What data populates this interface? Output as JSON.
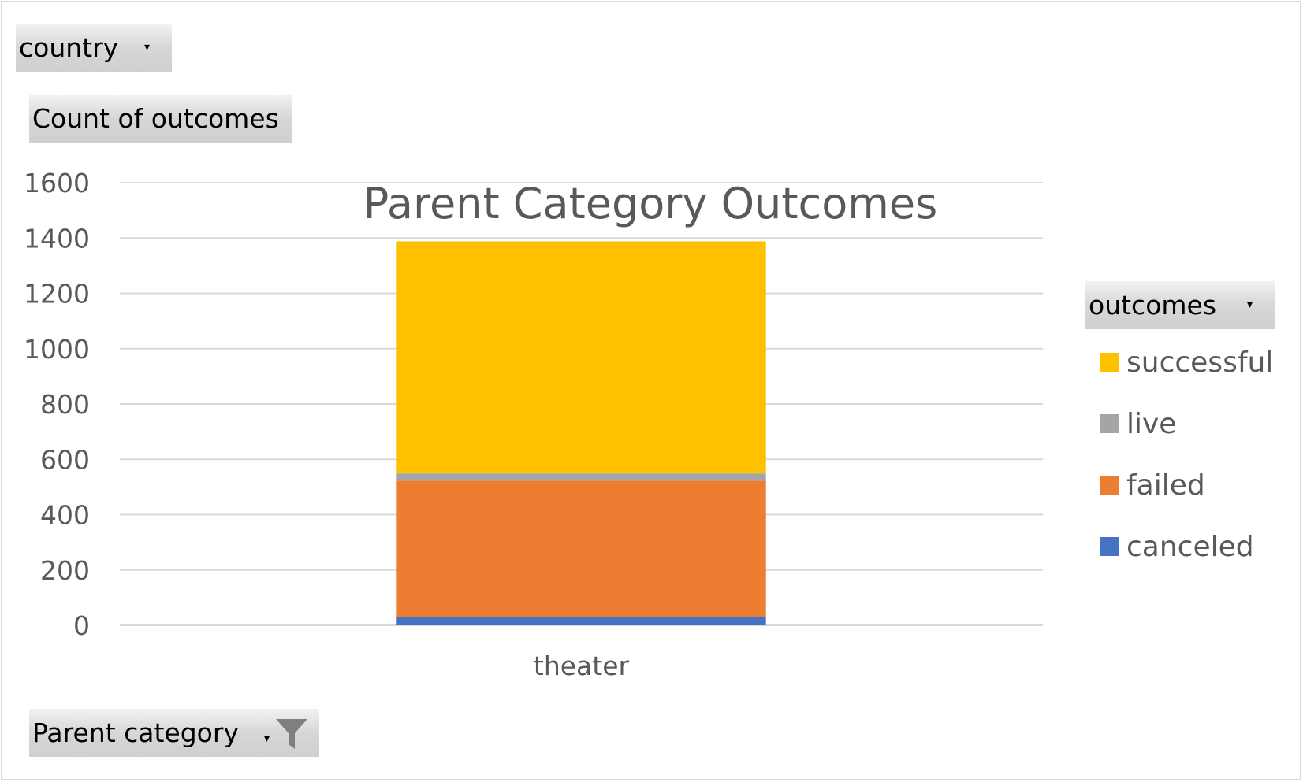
{
  "filters": {
    "country_label": "country",
    "values_label": "Count of outcomes",
    "legend_field_label": "outcomes",
    "axis_field_label": "Parent category"
  },
  "chart_data": {
    "type": "bar",
    "stacked": true,
    "title": "Parent Category Outcomes",
    "categories": [
      "theater"
    ],
    "ylim": [
      0,
      1600
    ],
    "yticks": [
      0,
      200,
      400,
      600,
      800,
      1000,
      1200,
      1400,
      1600
    ],
    "grid": true,
    "legend_position": "right",
    "series": [
      {
        "name": "canceled",
        "values": [
          30
        ],
        "color": "#4472c4"
      },
      {
        "name": "failed",
        "values": [
          493
        ],
        "color": "#ed7d31"
      },
      {
        "name": "live",
        "values": [
          26
        ],
        "color": "#a5a5a5"
      },
      {
        "name": "successful",
        "values": [
          839
        ],
        "color": "#ffc000"
      }
    ],
    "legend_order": [
      "successful",
      "live",
      "failed",
      "canceled"
    ]
  }
}
